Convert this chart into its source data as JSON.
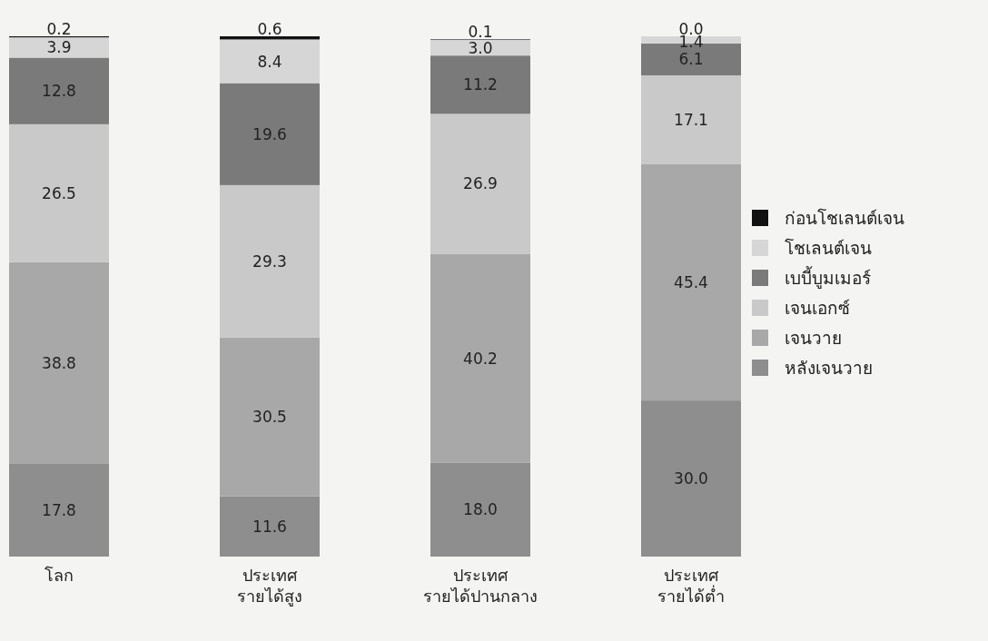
{
  "chart_data": {
    "type": "bar",
    "stacked": true,
    "legend": "right",
    "categories": [
      "โลก",
      "ประเทศ\nรายได้สูง",
      "ประเทศ\nรายได้ปานกลาง",
      "ประเทศ\nรายได้ต่ำ"
    ],
    "series": [
      {
        "name": "หลังเจนวาย",
        "color": "#8e8e8e",
        "values": [
          17.8,
          11.6,
          18.0,
          30.0
        ],
        "value_labels": [
          "17.8",
          "11.6",
          "18.0",
          "30.0"
        ]
      },
      {
        "name": "เจนวาย",
        "color": "#a8a8a8",
        "values": [
          38.8,
          30.5,
          40.2,
          45.4
        ],
        "value_labels": [
          "38.8",
          "30.5",
          "40.2",
          "45.4"
        ]
      },
      {
        "name": "เจนเอกซ์",
        "color": "#c9c9c9",
        "values": [
          26.5,
          29.3,
          26.9,
          17.1
        ],
        "value_labels": [
          "26.5",
          "29.3",
          "26.9",
          "17.1"
        ]
      },
      {
        "name": "เบบี้บูมเมอร์",
        "color": "#7a7a7a",
        "values": [
          12.8,
          19.6,
          11.2,
          6.1
        ],
        "value_labels": [
          "12.8",
          "19.6",
          "11.2",
          "6.1"
        ]
      },
      {
        "name": "โชเลนต์เจน",
        "color": "#d6d6d6",
        "values": [
          3.9,
          8.4,
          3.0,
          1.4
        ],
        "value_labels": [
          "3.9",
          "8.4",
          "3.0",
          "1.4"
        ]
      },
      {
        "name": "ก่อนโชเลนต์เจน",
        "color": "#111111",
        "values": [
          0.2,
          0.6,
          0.1,
          0.0
        ],
        "value_labels": [
          "0.2",
          "0.6",
          "0.1",
          "0.0"
        ]
      }
    ]
  }
}
